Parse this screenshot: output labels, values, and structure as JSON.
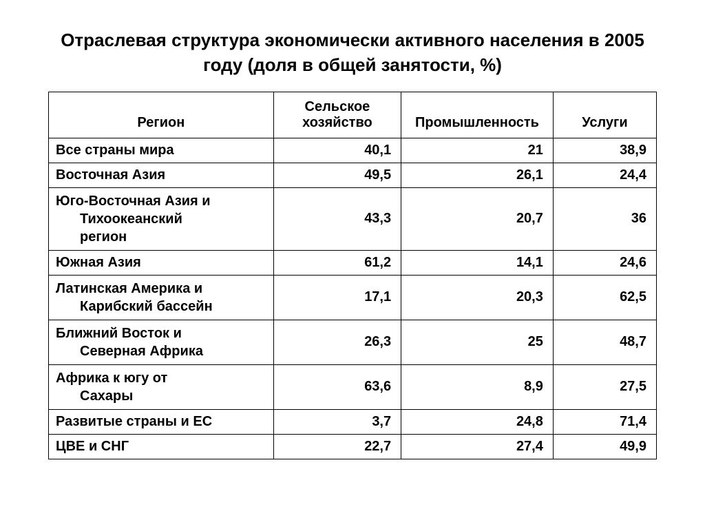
{
  "title": "Отраслевая структура экономически активного населения в 2005 году (доля  в общей занятости, %)",
  "table": {
    "columns": [
      "Регион",
      "Сельское хозяйство",
      "Промышленность",
      "Услуги"
    ],
    "rows": [
      {
        "region_lines": [
          "Все страны мира"
        ],
        "agriculture": "40,1",
        "industry": "21",
        "services": "38,9"
      },
      {
        "region_lines": [
          "Восточная Азия"
        ],
        "agriculture": "49,5",
        "industry": "26,1",
        "services": "24,4"
      },
      {
        "region_lines": [
          "Юго-Восточная Азия и",
          "Тихоокеанский",
          "регион"
        ],
        "agriculture": "43,3",
        "industry": "20,7",
        "services": "36"
      },
      {
        "region_lines": [
          "Южная Азия"
        ],
        "agriculture": "61,2",
        "industry": "14,1",
        "services": "24,6"
      },
      {
        "region_lines": [
          "Латинская Америка и",
          "Карибский бассейн"
        ],
        "agriculture": "17,1",
        "industry": "20,3",
        "services": "62,5"
      },
      {
        "region_lines": [
          "Ближний Восток и",
          "Северная Африка"
        ],
        "agriculture": "26,3",
        "industry": "25",
        "services": "48,7"
      },
      {
        "region_lines": [
          "Африка к югу от",
          "Сахары"
        ],
        "agriculture": "63,6",
        "industry": "8,9",
        "services": "27,5"
      },
      {
        "region_lines": [
          "Развитые страны и ЕС"
        ],
        "agriculture": "3,7",
        "industry": "24,8",
        "services": "71,4"
      },
      {
        "region_lines": [
          "ЦВЕ и СНГ"
        ],
        "agriculture": "22,7",
        "industry": "27,4",
        "services": "49,9"
      }
    ],
    "col_widths": [
      "37%",
      "21%",
      "25%",
      "17%"
    ]
  },
  "colors": {
    "text": "#000000",
    "background": "#ffffff",
    "border": "#000000"
  },
  "fonts": {
    "title_size": 26,
    "cell_size": 20,
    "family": "Arial"
  }
}
